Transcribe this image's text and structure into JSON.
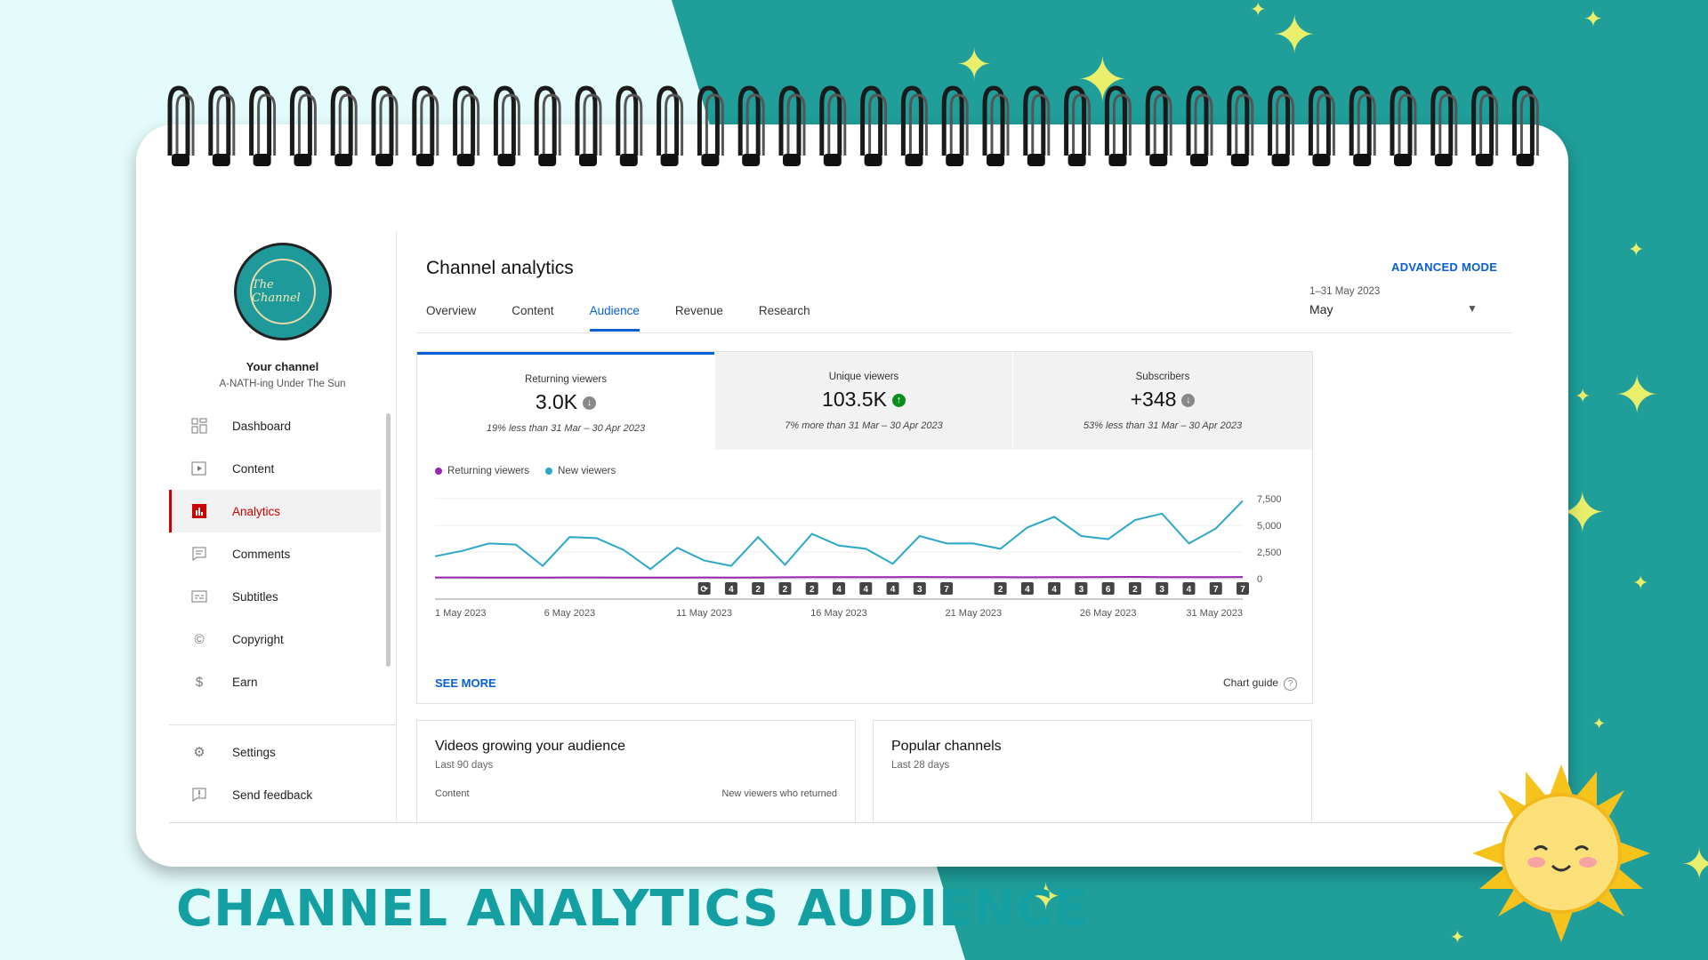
{
  "footer_title": "CHANNEL ANALYTICS AUDIENCE",
  "sidebar": {
    "avatar_text": "The Channel",
    "your_channel": "Your channel",
    "channel_name": "A-NATH-ing Under The Sun",
    "items": [
      {
        "label": "Dashboard",
        "icon": "dashboard-icon"
      },
      {
        "label": "Content",
        "icon": "content-icon"
      },
      {
        "label": "Analytics",
        "icon": "analytics-icon",
        "active": true
      },
      {
        "label": "Comments",
        "icon": "comments-icon"
      },
      {
        "label": "Subtitles",
        "icon": "subtitles-icon"
      },
      {
        "label": "Copyright",
        "icon": "copyright-icon"
      },
      {
        "label": "Earn",
        "icon": "earn-icon"
      }
    ],
    "bottom_items": [
      {
        "label": "Settings",
        "icon": "settings-icon"
      },
      {
        "label": "Send feedback",
        "icon": "feedback-icon"
      }
    ]
  },
  "header": {
    "title": "Channel analytics",
    "advanced_mode": "ADVANCED MODE",
    "tabs": [
      "Overview",
      "Content",
      "Audience",
      "Revenue",
      "Research"
    ],
    "active_tab": "Audience",
    "date_range": "1–31 May 2023",
    "date_value": "May"
  },
  "metrics": [
    {
      "label": "Returning viewers",
      "value": "3.0K",
      "trend": "down",
      "note": "19% less than 31 Mar – 30 Apr 2023"
    },
    {
      "label": "Unique viewers",
      "value": "103.5K",
      "trend": "up",
      "note": "7% more than 31 Mar – 30 Apr 2023"
    },
    {
      "label": "Subscribers",
      "value": "+348",
      "trend": "down",
      "note": "53% less than 31 Mar – 30 Apr 2023"
    }
  ],
  "see_more": "SEE MORE",
  "chart_guide": "Chart guide",
  "chart_data": {
    "type": "line",
    "x": [
      "1 May 2023",
      "2 May 2023",
      "3 May 2023",
      "4 May 2023",
      "5 May 2023",
      "6 May 2023",
      "7 May 2023",
      "8 May 2023",
      "9 May 2023",
      "10 May 2023",
      "11 May 2023",
      "12 May 2023",
      "13 May 2023",
      "14 May 2023",
      "15 May 2023",
      "16 May 2023",
      "17 May 2023",
      "18 May 2023",
      "19 May 2023",
      "20 May 2023",
      "21 May 2023",
      "22 May 2023",
      "23 May 2023",
      "24 May 2023",
      "25 May 2023",
      "26 May 2023",
      "27 May 2023",
      "28 May 2023",
      "29 May 2023",
      "30 May 2023",
      "31 May 2023"
    ],
    "x_tick_labels": [
      "1 May 2023",
      "6 May 2023",
      "11 May 2023",
      "16 May 2023",
      "21 May 2023",
      "26 May 2023",
      "31 May 2023"
    ],
    "series": [
      {
        "name": "Returning viewers",
        "color": "#9c27b0",
        "values": [
          120,
          120,
          110,
          100,
          110,
          120,
          115,
          110,
          100,
          110,
          120,
          110,
          120,
          130,
          140,
          150,
          140,
          150,
          160,
          140,
          150,
          140,
          130,
          140,
          150,
          160,
          170,
          150,
          140,
          150,
          160
        ]
      },
      {
        "name": "New viewers",
        "color": "#2aa8c9",
        "values": [
          2100,
          2600,
          3300,
          3200,
          1200,
          3900,
          3800,
          2700,
          900,
          2900,
          1700,
          1200,
          3900,
          1300,
          4200,
          3100,
          2800,
          1400,
          4000,
          3300,
          3300,
          2800,
          4800,
          5800,
          4000,
          3700,
          5500,
          6100,
          3300,
          4700,
          7300
        ]
      }
    ],
    "y_ticks": [
      "0",
      "2,500",
      "5,000",
      "7,500"
    ],
    "ylim": [
      0,
      7500
    ],
    "markers": [
      {
        "day": 11,
        "label": "⟳"
      },
      {
        "day": 12,
        "label": "4"
      },
      {
        "day": 13,
        "label": "2"
      },
      {
        "day": 14,
        "label": "2"
      },
      {
        "day": 15,
        "label": "2"
      },
      {
        "day": 16,
        "label": "4"
      },
      {
        "day": 17,
        "label": "4"
      },
      {
        "day": 18,
        "label": "4"
      },
      {
        "day": 19,
        "label": "3"
      },
      {
        "day": 20,
        "label": "7"
      },
      {
        "day": 22,
        "label": "2"
      },
      {
        "day": 23,
        "label": "4"
      },
      {
        "day": 24,
        "label": "4"
      },
      {
        "day": 25,
        "label": "3"
      },
      {
        "day": 26,
        "label": "6"
      },
      {
        "day": 27,
        "label": "2"
      },
      {
        "day": 28,
        "label": "3"
      },
      {
        "day": 29,
        "label": "4"
      },
      {
        "day": 30,
        "label": "7"
      },
      {
        "day": 31,
        "label": "7"
      }
    ],
    "legend_position": "top-left",
    "grid": true
  },
  "lower_cards": [
    {
      "title": "Videos growing your audience",
      "subtitle": "Last 90 days",
      "col_left": "Content",
      "col_right": "New viewers who returned"
    },
    {
      "title": "Popular channels",
      "subtitle": "Last 28 days",
      "col_left": "",
      "col_right": ""
    }
  ],
  "colors": {
    "accent": "#065fd4",
    "active_nav": "#cc0000",
    "teal_bg": "#20a39f",
    "returning": "#9c27b0",
    "new": "#2aa8c9"
  }
}
